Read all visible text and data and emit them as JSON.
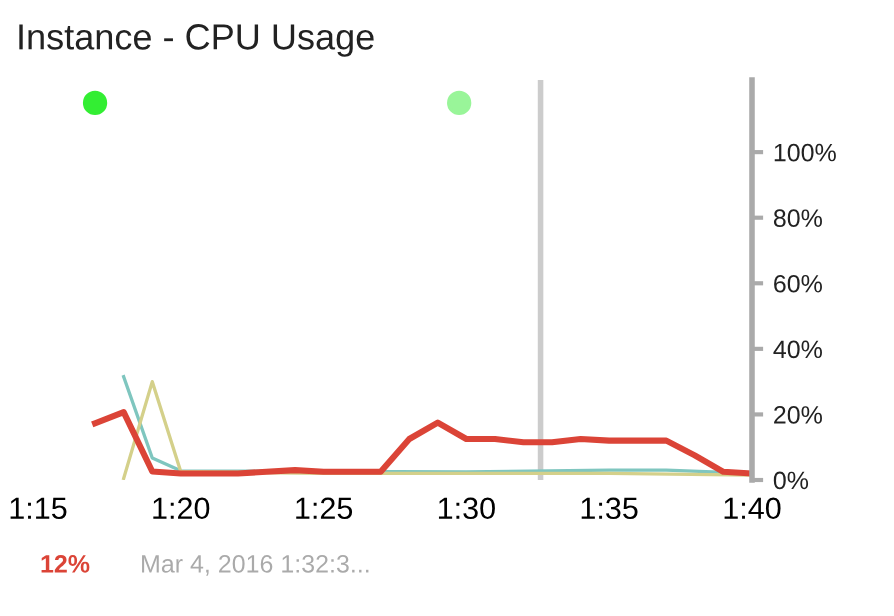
{
  "chart_data": {
    "type": "line",
    "title": "Instance - CPU Usage",
    "series": [
      {
        "color": "#7fc6bf",
        "x": [
          1.3,
          1.3167,
          1.3333,
          1.5,
          1.5833,
          1.6167,
          1.6667
        ],
        "values": [
          31.5,
          6.7,
          2.8,
          2.5,
          3,
          3,
          2
        ]
      },
      {
        "color": "#d4d08a",
        "x": [
          1.3,
          1.3167,
          1.3333,
          1.4167,
          1.5,
          1.5833,
          1.6667
        ],
        "values": [
          0.5,
          30,
          2.6,
          2,
          2,
          2,
          1.5
        ]
      },
      {
        "color": "#db4437",
        "x": [
          1.2833,
          1.3,
          1.3167,
          1.3333,
          1.35,
          1.3667,
          1.3833,
          1.4,
          1.4167,
          1.4333,
          1.45,
          1.4667,
          1.4833,
          1.5,
          1.5167,
          1.5333,
          1.55,
          1.5667,
          1.5833,
          1.6,
          1.6167,
          1.6333,
          1.65,
          1.6667
        ],
        "values": [
          17.3,
          20.7,
          2.6,
          2,
          2,
          2,
          2.5,
          3,
          2.5,
          2.5,
          2.5,
          12.5,
          17.5,
          12.5,
          12.5,
          11.5,
          11.5,
          12.5,
          12,
          12,
          12,
          7.5,
          2.5,
          2
        ]
      },
      {
        "type": "scatter",
        "marker": "circle",
        "colors": [
          "#33ee33",
          "#99f599"
        ],
        "x": [
          1.2833,
          1.4958
        ],
        "values": [
          115,
          115
        ]
      }
    ],
    "xlim": [
      1.25,
      1.6667
    ],
    "xticks": [
      {
        "value": 1.25,
        "label": "1:15"
      },
      {
        "value": 1.3333,
        "label": "1:20"
      },
      {
        "value": 1.4167,
        "label": "1:25"
      },
      {
        "value": 1.5,
        "label": "1:30"
      },
      {
        "value": 1.5833,
        "label": "1:35"
      },
      {
        "value": 1.6667,
        "label": "1:40"
      }
    ],
    "ylim": [
      0,
      122
    ],
    "yticks": [
      {
        "value": 0,
        "label": "0%"
      },
      {
        "value": 20,
        "label": "20%"
      },
      {
        "value": 40,
        "label": "40%"
      },
      {
        "value": 60,
        "label": "60%"
      },
      {
        "value": 80,
        "label": "80%"
      },
      {
        "value": 100,
        "label": "100%"
      }
    ],
    "ref_lines": [
      {
        "axis": "x",
        "value": 1.5433,
        "color": "#cccccc"
      }
    ],
    "annotations": [
      "12%",
      "Mar 4, 2016 1:32:3..."
    ],
    "grid": false,
    "legend": false
  }
}
